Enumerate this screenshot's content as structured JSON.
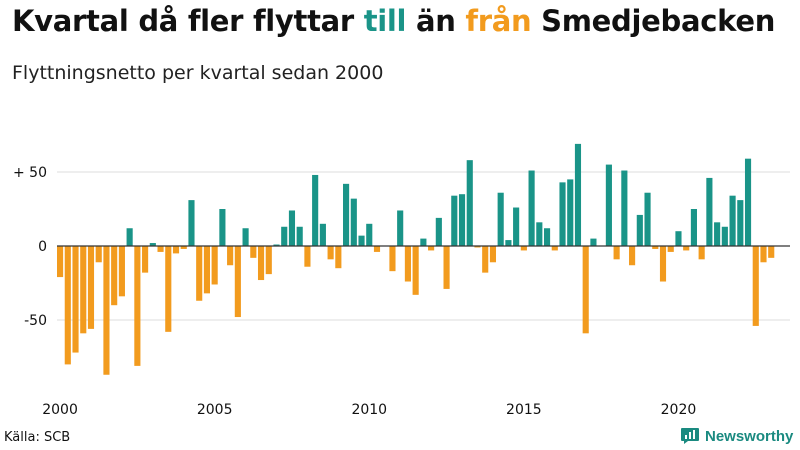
{
  "header": {
    "title_parts": [
      {
        "text": "Kvartal då fler flyttar ",
        "color": "#111111"
      },
      {
        "text": "till",
        "color": "#1a9488"
      },
      {
        "text": " än ",
        "color": "#111111"
      },
      {
        "text": "från",
        "color": "#f29b1e"
      },
      {
        "text": " Smedjebacken",
        "color": "#111111"
      }
    ],
    "subtitle": "Flyttningsnetto per kvartal sedan 2000"
  },
  "footer": {
    "source": "Källa: SCB",
    "brand": "Newsworthy",
    "brand_icon": "bar-chart-logo-icon"
  },
  "colors": {
    "positive": "#1a9488",
    "negative": "#f29b1e",
    "grid": "#dddddd",
    "zero_line": "#333333"
  },
  "chart_data": {
    "type": "bar",
    "title": "Kvartal då fler flyttar till än från Smedjebacken",
    "subtitle": "Flyttningsnetto per kvartal sedan 2000",
    "start_year": 2000,
    "quarters_per_year": 4,
    "values": [
      -21,
      -80,
      -72,
      -59,
      -56,
      -11,
      -87,
      -40,
      -34,
      12,
      -81,
      -18,
      2,
      -4,
      -58,
      -5,
      -2,
      31,
      -37,
      -32,
      -26,
      25,
      -13,
      -48,
      12,
      -8,
      -23,
      -19,
      1,
      13,
      24,
      13,
      -14,
      48,
      15,
      -9,
      -15,
      42,
      32,
      7,
      15,
      -4,
      0,
      -17,
      24,
      -24,
      -33,
      5,
      -3,
      19,
      -29,
      34,
      35,
      58,
      -1,
      -18,
      -11,
      36,
      4,
      26,
      -3,
      51,
      16,
      12,
      -3,
      43,
      45,
      69,
      -59,
      5,
      0,
      55,
      -9,
      51,
      -13,
      21,
      36,
      -2,
      -24,
      -4,
      10,
      -3,
      25,
      -9,
      46,
      16,
      13,
      34,
      31,
      59,
      -54,
      -11,
      -8
    ],
    "x_ticks": [
      "2000",
      "2005",
      "2010",
      "2015",
      "2020"
    ],
    "y_ticks": [
      {
        "value": 50,
        "label": "+ 50"
      },
      {
        "value": 0,
        "label": "0"
      },
      {
        "value": -50,
        "label": "-50"
      }
    ],
    "ylim": [
      -90,
      75
    ],
    "grid": true,
    "legend": "none"
  }
}
